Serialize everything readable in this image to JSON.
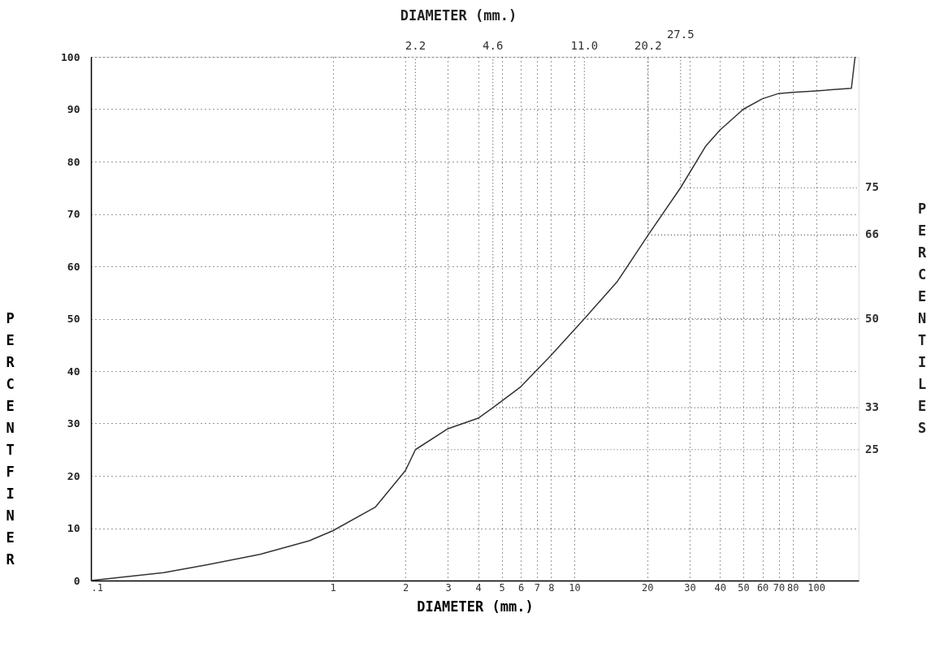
{
  "chart_data": {
    "type": "line",
    "xlabel": "DIAMETER (mm.)",
    "x2label": "DIAMETER (mm.)",
    "ylabel": "PERCENT FINER",
    "y2label": "PERCENTILES",
    "x": [
      0.1,
      0.2,
      0.3,
      0.5,
      0.8,
      1,
      1.5,
      2,
      2.2,
      3,
      4,
      4.6,
      6,
      8,
      11,
      15,
      20.2,
      27.5,
      35,
      40,
      50,
      60,
      70,
      80,
      100,
      140,
      145
    ],
    "series": [
      {
        "color": "#333333",
        "values": [
          0,
          1.5,
          3,
          5,
          7.6,
          9.5,
          14,
          21,
          25,
          29,
          31,
          33,
          37,
          43,
          50,
          57,
          66,
          75,
          83,
          86,
          90,
          92,
          93,
          93.2,
          93.5,
          94,
          100
        ]
      }
    ],
    "log": "x",
    "xlim": [
      0.1,
      150
    ],
    "ylim": [
      0,
      100
    ],
    "xticks": [
      {
        "value": 0.1,
        "label": ".1"
      },
      1,
      2,
      3,
      4,
      5,
      6,
      7,
      8,
      10,
      20,
      30,
      40,
      50,
      60,
      70,
      80,
      100
    ],
    "yticks": [
      0,
      10,
      20,
      30,
      40,
      50,
      60,
      70,
      80,
      90,
      100
    ],
    "grid": true,
    "ref_lines": [
      {
        "axis": "x",
        "value": 2.2,
        "label": "2.2",
        "line_style": "dotted",
        "color": "#555555"
      },
      {
        "axis": "x",
        "value": 4.6,
        "label": "4.6",
        "line_style": "dotted",
        "color": "#555555"
      },
      {
        "axis": "x",
        "value": 11,
        "label": "11.0",
        "line_style": "dotted",
        "color": "#555555"
      },
      {
        "axis": "x",
        "value": 20.2,
        "label": "20.2",
        "line_style": "dotted",
        "color": "#555555"
      },
      {
        "axis": "x",
        "value": 27.5,
        "label": "27.5",
        "line_style": "dotted",
        "color": "#555555"
      },
      {
        "axis": "y",
        "value": 25,
        "label": "25",
        "line_style": "dotted",
        "color": "#555555"
      },
      {
        "axis": "y",
        "value": 33,
        "label": "33",
        "line_style": "dotted",
        "color": "#555555"
      },
      {
        "axis": "y",
        "value": 50,
        "label": "50",
        "line_style": "dotted",
        "color": "#555555"
      },
      {
        "axis": "y",
        "value": 66,
        "label": "66",
        "line_style": "dotted",
        "color": "#555555"
      },
      {
        "axis": "y",
        "value": 75,
        "label": "75",
        "line_style": "dotted",
        "color": "#555555"
      }
    ]
  }
}
